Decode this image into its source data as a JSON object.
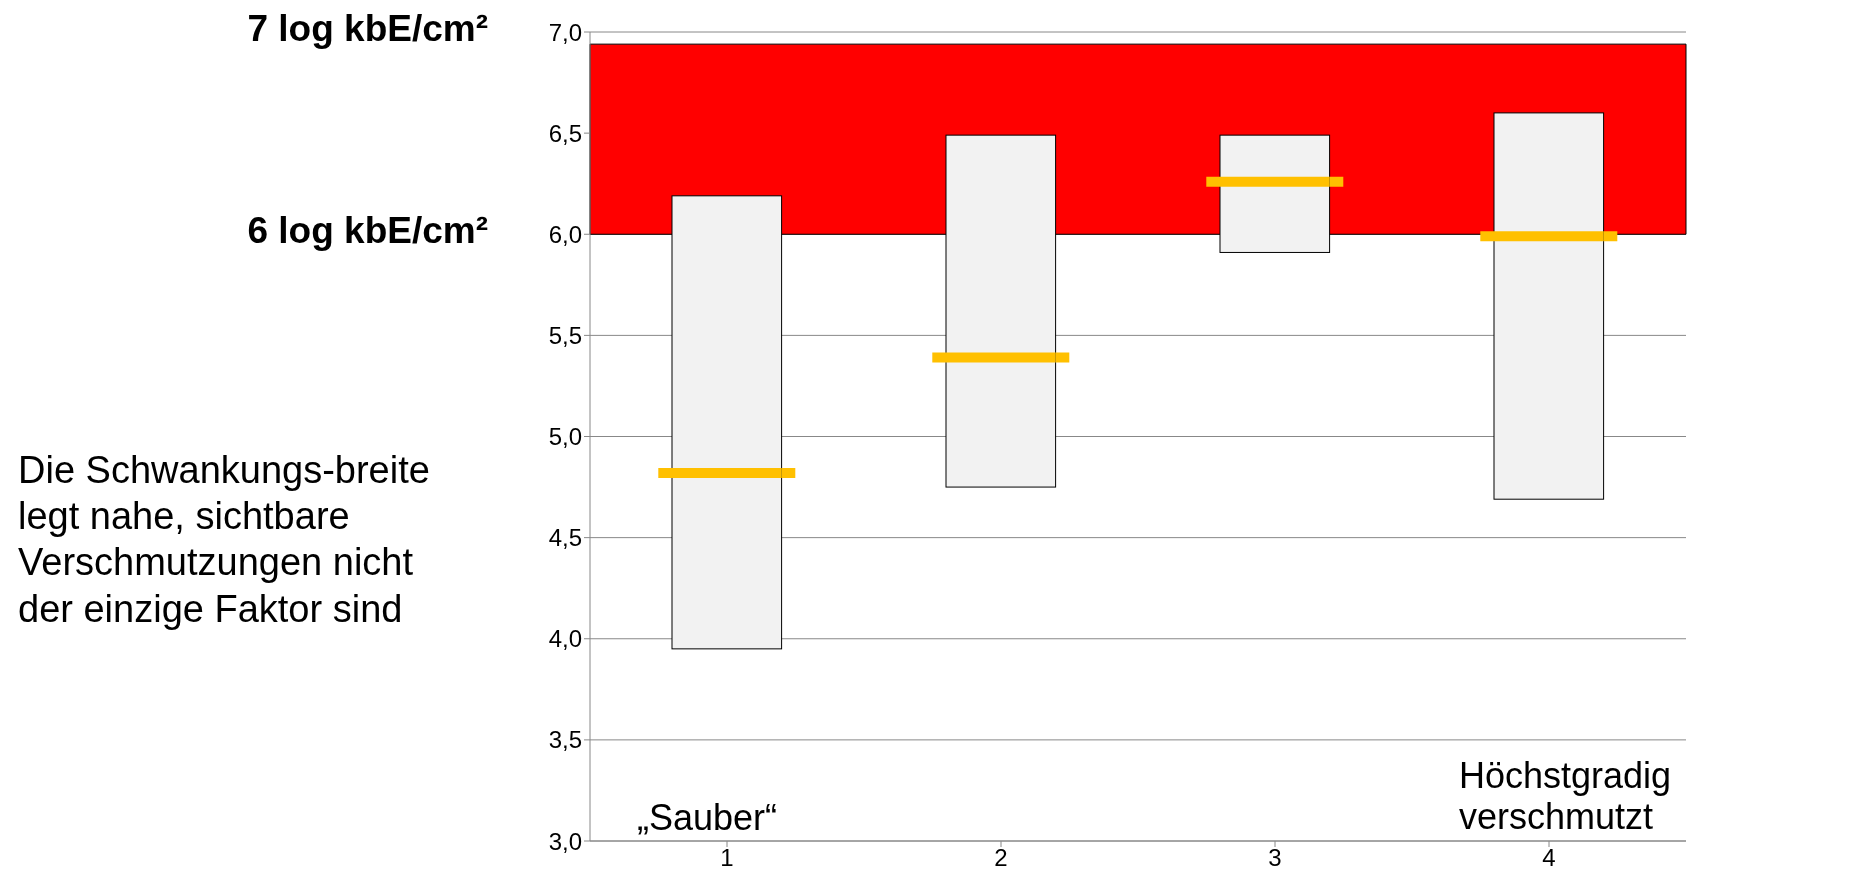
{
  "chart_data": {
    "type": "box",
    "categories": [
      "1",
      "2",
      "3",
      "4"
    ],
    "boxes": [
      {
        "low": 3.95,
        "q1": 3.95,
        "median": 4.82,
        "q3": 6.19,
        "high": 6.19
      },
      {
        "low": 4.75,
        "q1": 4.75,
        "median": 5.39,
        "q3": 6.49,
        "high": 6.49
      },
      {
        "low": 5.91,
        "q1": 5.91,
        "median": 6.26,
        "q3": 6.49,
        "high": 6.49
      },
      {
        "low": 4.69,
        "q1": 4.69,
        "median": 5.99,
        "q3": 6.6,
        "high": 6.6
      }
    ],
    "color": "#f2f2f2",
    "ylim": [
      3,
      7
    ],
    "yticks": [
      {
        "value": 3,
        "label": "3,0"
      },
      {
        "value": 3.5,
        "label": "3,5"
      },
      {
        "value": 4,
        "label": "4,0"
      },
      {
        "value": 4.5,
        "label": "4,5"
      },
      {
        "value": 5,
        "label": "5,0"
      },
      {
        "value": 5.5,
        "label": "5,5"
      },
      {
        "value": 6,
        "label": "6,0"
      },
      {
        "value": 6.5,
        "label": "6,5"
      },
      {
        "value": 7,
        "label": "7,0"
      }
    ],
    "grid": "y",
    "bands": [
      {
        "axis": "y",
        "from": 6,
        "to": 6.94,
        "color": "#ff0000"
      }
    ],
    "annotations": [
      "7 log kbE/cm²",
      "6 log kbE/cm²",
      "Die Schwankungs-breite legt nahe, sichtbare Verschmutzungen nicht der einzige Faktor sind",
      "„Sauber“",
      "Höchstgradig verschmutzt"
    ]
  }
}
